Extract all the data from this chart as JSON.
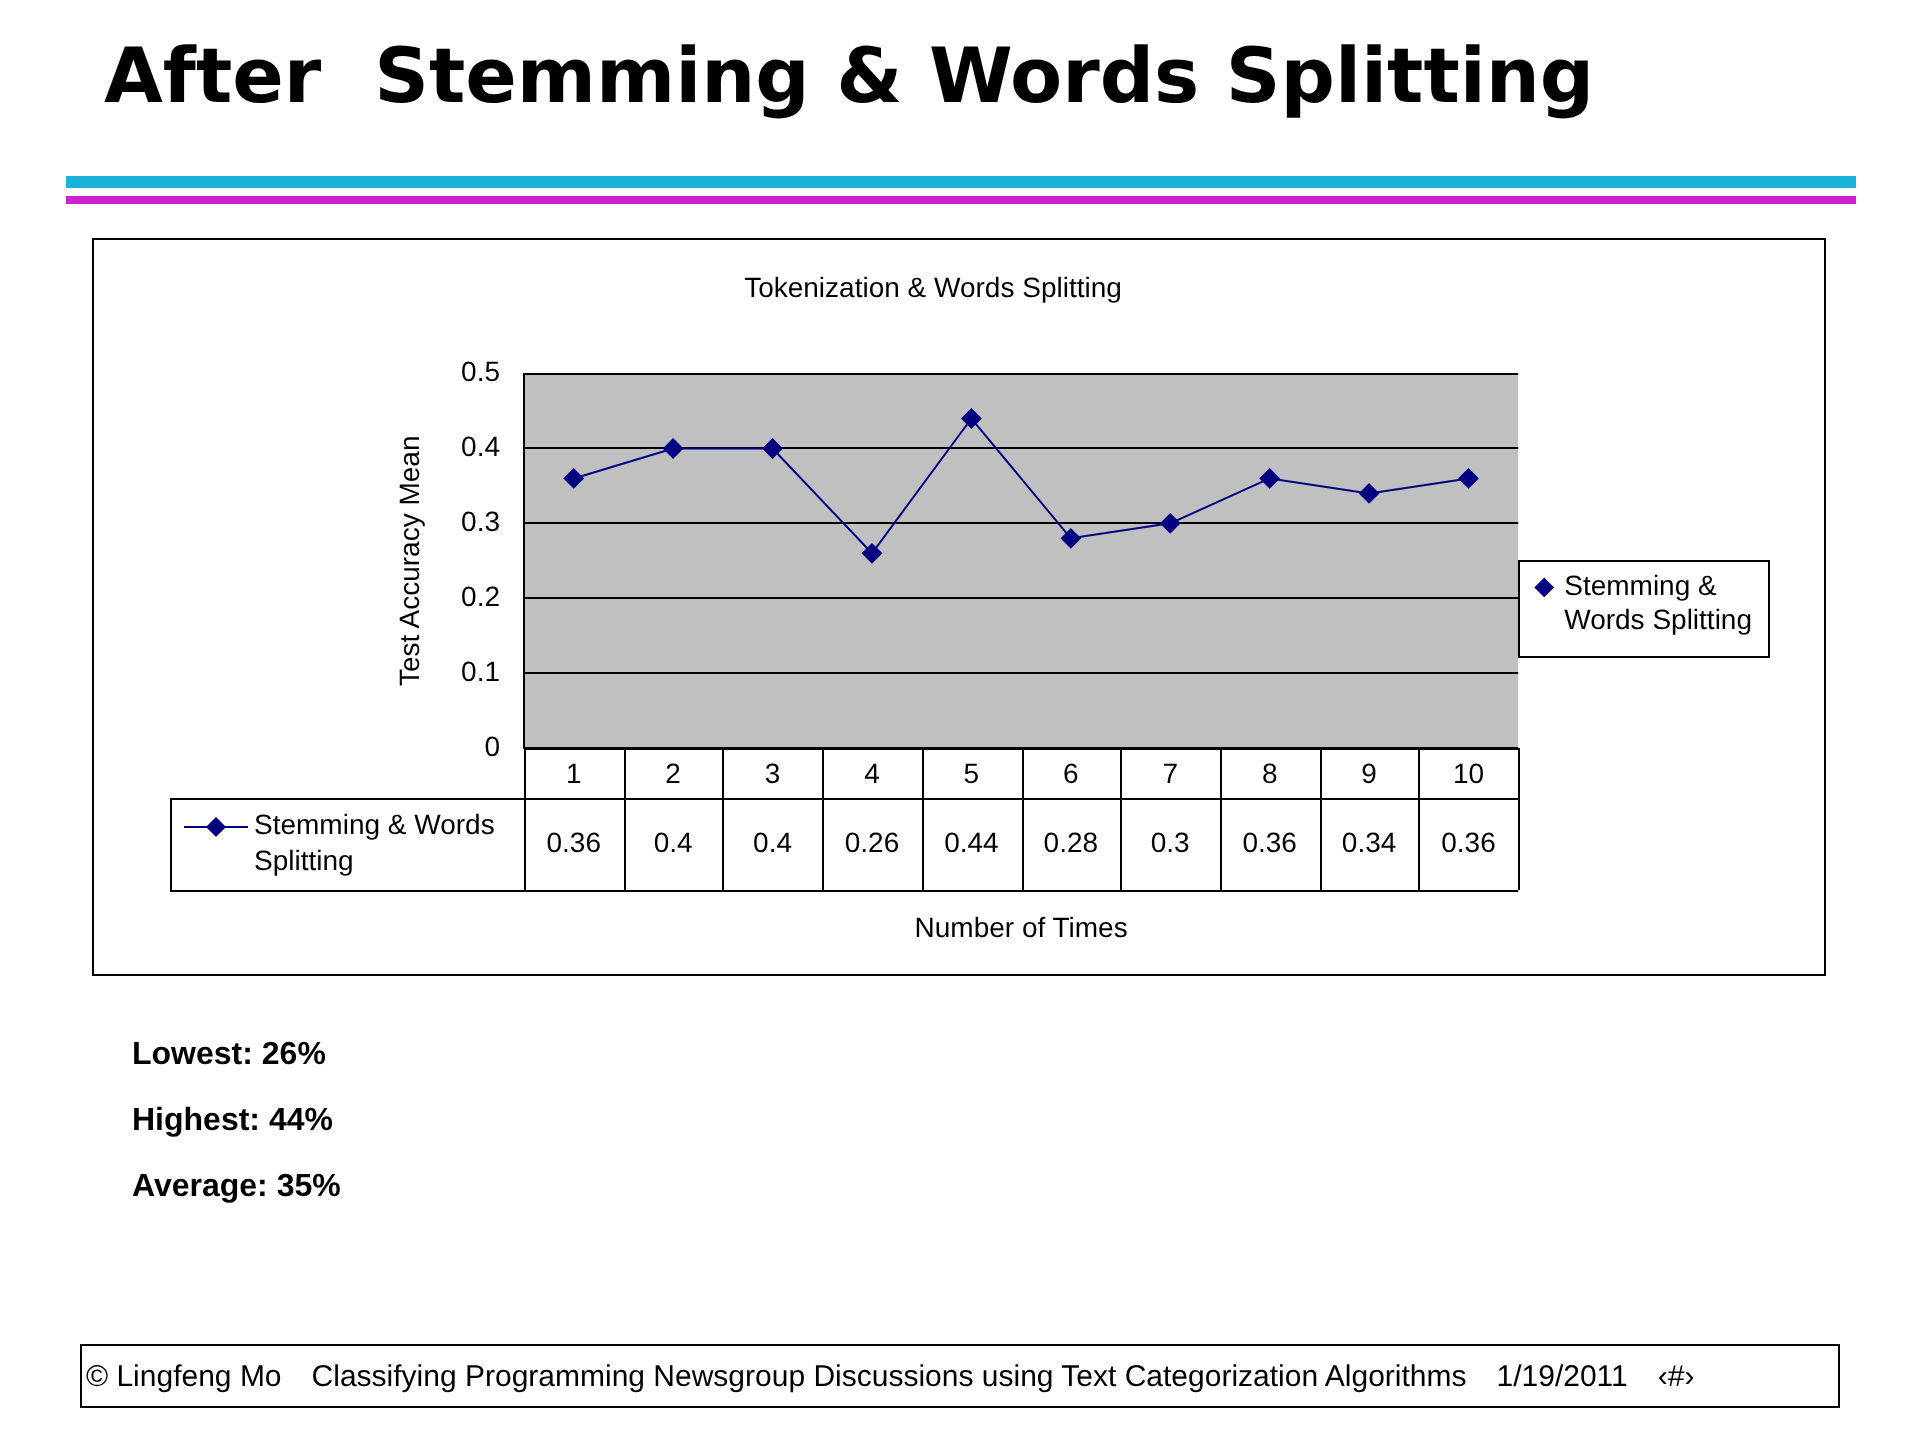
{
  "chart_data": {
    "type": "line",
    "title": "After  Stemming & Words Splitting",
    "subtitle": "Tokenization & Words Splitting",
    "xlabel": "Number of Times",
    "ylabel": "Test Accuracy Mean",
    "categories": [
      "1",
      "2",
      "3",
      "4",
      "5",
      "6",
      "7",
      "8",
      "9",
      "10"
    ],
    "series": [
      {
        "name": "Stemming & Words Splitting",
        "color": "#000080",
        "values": [
          0.36,
          0.4,
          0.4,
          0.26,
          0.44,
          0.28,
          0.3,
          0.36,
          0.34,
          0.36
        ]
      }
    ],
    "ylim": [
      0,
      0.5
    ],
    "yticks": [
      0,
      0.1,
      0.2,
      0.3,
      0.4,
      0.5
    ],
    "grid": "y",
    "legend": "right",
    "marker": "diamond",
    "line_style": "solid",
    "data_labels": true,
    "annotations": [
      "Lowest: 26%",
      "Highest: 44%",
      "Average: 35%",
      "© Lingfeng Mo",
      "Classifying Programming Newsgroup Discussions using Text Categorization Algorithms",
      "1/19/2011",
      "‹#›"
    ]
  }
}
